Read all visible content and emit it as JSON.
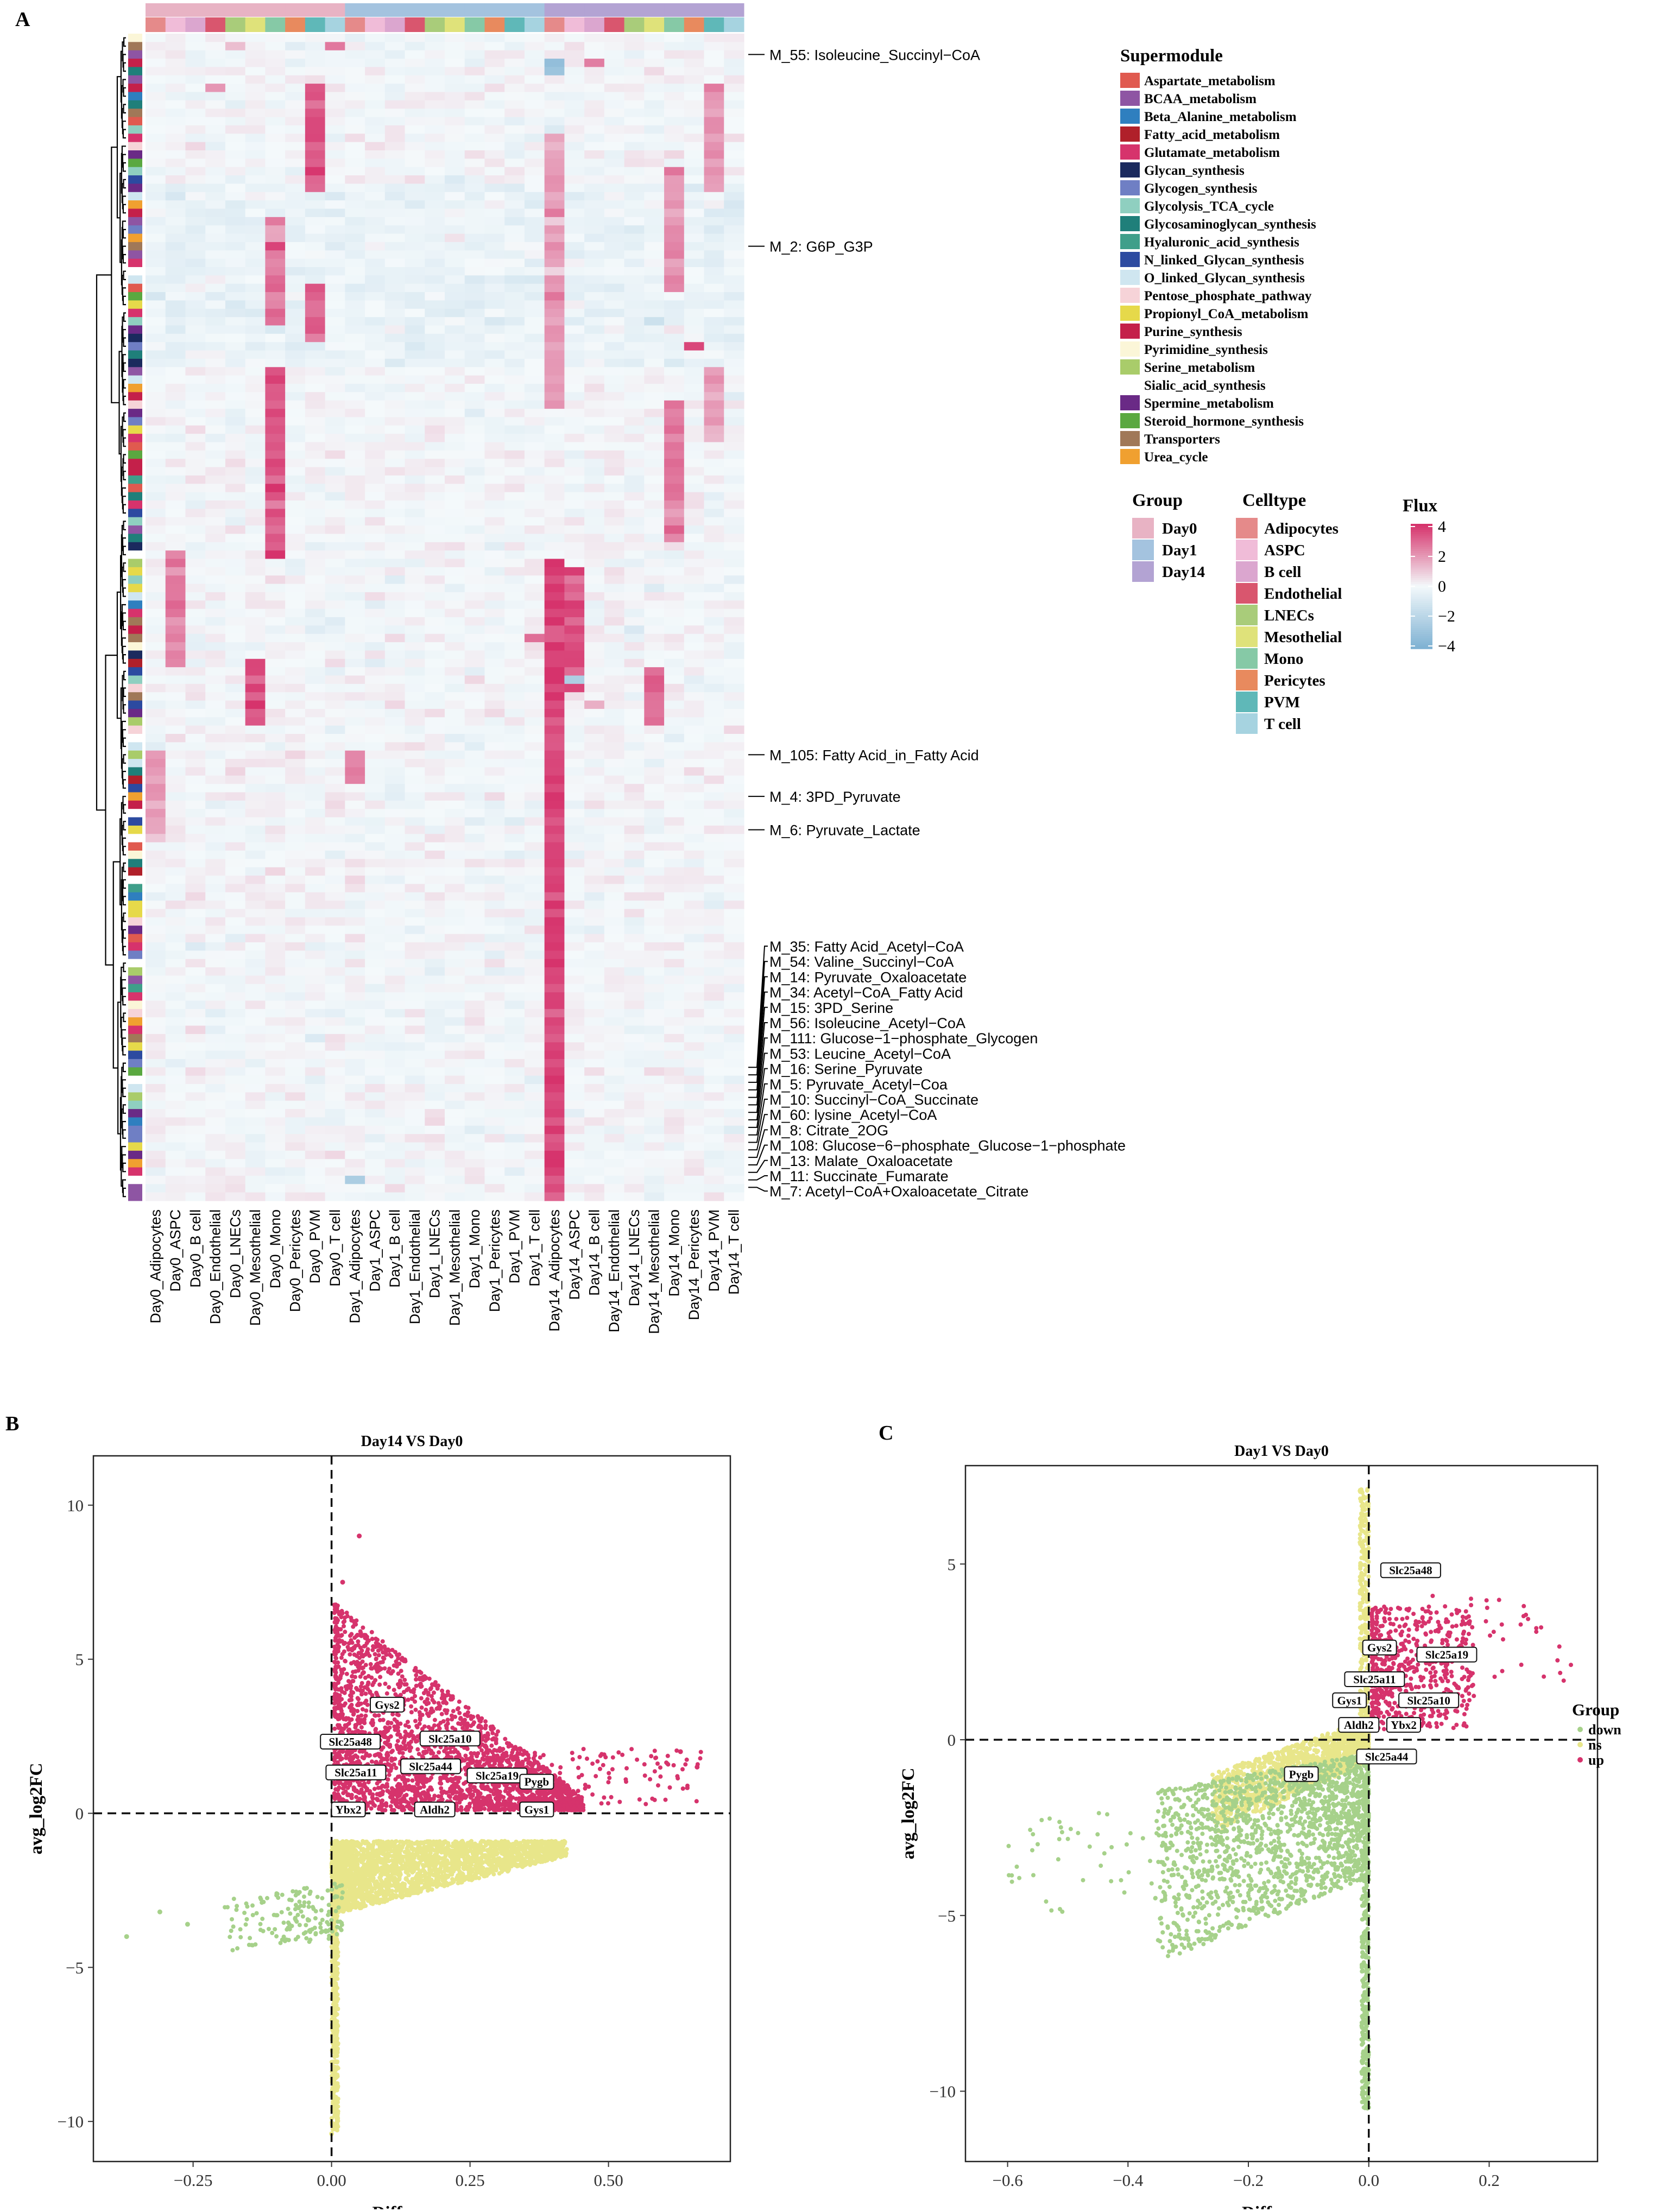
{
  "panel_letters": {
    "a": "A",
    "b": "B",
    "c": "C"
  },
  "colors": {
    "up": "#d6336c",
    "ns": "#e8e68a",
    "down": "#a6d18a",
    "heat_pos": "#d6336c",
    "heat_neg": "#7fb2d3",
    "heat_mid": "#f4f9fb"
  },
  "heatmap": {
    "columns": [
      "Day0_Adipocytes",
      "Day0_ASPC",
      "Day0_B cell",
      "Day0_Endothelial",
      "Day0_LNECs",
      "Day0_Mesothelial",
      "Day0_Mono",
      "Day0_Pericytes",
      "Day0_PVM",
      "Day0_T cell",
      "Day1_Adipocytes",
      "Day1_ASPC",
      "Day1_B cell",
      "Day1_Endothelial",
      "Day1_LNECs",
      "Day1_Mesothelial",
      "Day1_Mono",
      "Day1_Pericytes",
      "Day1_PVM",
      "Day1_T cell",
      "Day14_Adipocytes",
      "Day14_ASPC",
      "Day14_B cell",
      "Day14_Endothelial",
      "Day14_LNECs",
      "Day14_Mesothelial",
      "Day14_Mono",
      "Day14_Pericytes",
      "Day14_PVM",
      "Day14_T cell"
    ],
    "n_rows": 140,
    "module_labels_top": [
      {
        "label": "M_55: Isoleucine_Succinyl−CoA",
        "row": 2
      },
      {
        "label": "M_2: G6P_G3P",
        "row": 25
      },
      {
        "label": "M_105: Fatty Acid_in_Fatty Acid",
        "row": 86
      },
      {
        "label": "M_4: 3PD_Pyruvate",
        "row": 91
      },
      {
        "label": "M_6: Pyruvate_Lactate",
        "row": 95
      }
    ],
    "module_labels_bottom": [
      "M_35: Fatty Acid_Acetyl−CoA",
      "M_54: Valine_Succinyl−CoA",
      "M_14: Pyruvate_Oxaloacetate",
      "M_34: Acetyl−CoA_Fatty Acid",
      "M_15: 3PD_Serine",
      "M_56: Isoleucine_Acetyl−CoA",
      "M_111: Glucose−1−phosphate_Glycogen",
      "M_53: Leucine_Acetyl−CoA",
      "M_16: Serine_Pyruvate",
      "M_5: Pyruvate_Acetyl−Coa",
      "M_10: Succinyl−CoA_Succinate",
      "M_60: lysine_Acetyl−CoA",
      "M_8: Citrate_2OG",
      "M_108: Glucose−6−phosphate_Glucose−1−phosphate",
      "M_13: Malate_Oxaloacetate",
      "M_11: Succinate_Fumarate",
      "M_7: Acetyl−CoA+Oxaloacetate_Citrate"
    ]
  },
  "legend": {
    "supermodule_title": "Supermodule",
    "supermodule": [
      {
        "name": "Aspartate_metabolism",
        "color": "#e05a4f"
      },
      {
        "name": "BCAA_metabolism",
        "color": "#8e55a3"
      },
      {
        "name": "Beta_Alanine_metabolism",
        "color": "#2f7fbf"
      },
      {
        "name": "Fatty_acid_metabolism",
        "color": "#b0202a"
      },
      {
        "name": "Glutamate_metabolism",
        "color": "#d6336c"
      },
      {
        "name": "Glycan_synthesis",
        "color": "#1b2a5e"
      },
      {
        "name": "Glycogen_synthesis",
        "color": "#6f7fc4"
      },
      {
        "name": "Glycolysis_TCA_cycle",
        "color": "#8fcfc0"
      },
      {
        "name": "Glycosaminoglycan_synthesis",
        "color": "#1f7f7a"
      },
      {
        "name": "Hyaluronic_acid_synthesis",
        "color": "#3f9f8a"
      },
      {
        "name": "N_linked_Glycan_synthesis",
        "color": "#2c4aa0"
      },
      {
        "name": "O_linked_Glycan_synthesis",
        "color": "#cfe6f0"
      },
      {
        "name": "Pentose_phosphate_pathway",
        "color": "#f6d3d8"
      },
      {
        "name": "Propionyl_CoA_metabolism",
        "color": "#e6d94a"
      },
      {
        "name": "Purine_synthesis",
        "color": "#c4204a"
      },
      {
        "name": "Pyrimidine_synthesis",
        "color": "#fbf6d8"
      },
      {
        "name": "Serine_metabolism",
        "color": "#a9cc6a"
      },
      {
        "name": "Sialic_acid_synthesis",
        "color": "#ffffff"
      },
      {
        "name": "Spermine_metabolism",
        "color": "#6a2a86"
      },
      {
        "name": "Steroid_hormone_synthesis",
        "color": "#5aa840"
      },
      {
        "name": "Transporters",
        "color": "#a07858"
      },
      {
        "name": "Urea_cycle",
        "color": "#f0a030"
      }
    ],
    "group_title": "Group",
    "group": [
      {
        "name": "Day0",
        "color": "#e8b3c4"
      },
      {
        "name": "Day1",
        "color": "#a4c3df"
      },
      {
        "name": "Day14",
        "color": "#b3a3d3"
      }
    ],
    "celltype_title": "Celltype",
    "celltype": [
      {
        "name": "Adipocytes",
        "color": "#e58a8a"
      },
      {
        "name": "ASPC",
        "color": "#f0bcd8"
      },
      {
        "name": "B cell",
        "color": "#dba6cf"
      },
      {
        "name": "Endothelial",
        "color": "#d9566e"
      },
      {
        "name": "LNECs",
        "color": "#a9cc7a"
      },
      {
        "name": "Mesothelial",
        "color": "#dfe27a"
      },
      {
        "name": "Mono",
        "color": "#86c9a6"
      },
      {
        "name": "Pericytes",
        "color": "#e88a5e"
      },
      {
        "name": "PVM",
        "color": "#5fb8b8"
      },
      {
        "name": "T cell",
        "color": "#a6d3e0"
      }
    ],
    "flux_title": "Flux",
    "flux_ticks": [
      "4",
      "2",
      "0",
      "−2",
      "−4"
    ]
  },
  "chart_data": [
    {
      "type": "scatter",
      "title": "Day14 VS Day0",
      "xlabel": "Difference",
      "ylabel": "avg_log2FC",
      "xlim": [
        -0.43,
        0.72
      ],
      "ylim": [
        -11.3,
        11.6
      ],
      "xticks": [
        -0.25,
        0.0,
        0.25,
        0.5
      ],
      "xtick_labels": [
        "−0.25",
        "0.00",
        "0.25",
        "0.50"
      ],
      "yticks": [
        -10,
        -5,
        0,
        5,
        10
      ],
      "ytick_labels": [
        "−10",
        "−5",
        "0",
        "5",
        "10"
      ],
      "groups": [
        {
          "name": "up",
          "region": {
            "x": [
              0.01,
              0.68
            ],
            "y": [
              0.0,
              7.5
            ]
          }
        },
        {
          "name": "ns",
          "region": {
            "x": [
              0.0,
              0.42
            ],
            "y": [
              -0.9,
              -2.8
            ]
          }
        },
        {
          "name": "down",
          "region": {
            "x": [
              -0.38,
              0.02
            ],
            "y": [
              -2.2,
              -4.8
            ]
          }
        }
      ],
      "gene_labels": [
        {
          "gene": "Gys2",
          "x": 0.07,
          "y": 3.5
        },
        {
          "gene": "Slc25a48",
          "x": -0.02,
          "y": 2.3
        },
        {
          "gene": "Slc25a10",
          "x": 0.16,
          "y": 2.4
        },
        {
          "gene": "Slc25a44",
          "x": 0.125,
          "y": 1.5
        },
        {
          "gene": "Slc25a11",
          "x": -0.01,
          "y": 1.3
        },
        {
          "gene": "Slc25a19",
          "x": 0.245,
          "y": 1.2
        },
        {
          "gene": "Pygb",
          "x": 0.34,
          "y": 1.0
        },
        {
          "gene": "Ybx2",
          "x": 0.0,
          "y": 0.1
        },
        {
          "gene": "Aldh2",
          "x": 0.15,
          "y": 0.1
        },
        {
          "gene": "Gys1",
          "x": 0.34,
          "y": 0.1
        }
      ],
      "extreme_points": [
        {
          "x": 0.05,
          "y": 9.0
        },
        {
          "x": 0.02,
          "y": 7.5
        },
        {
          "x": 0.63,
          "y": 2.0
        },
        {
          "x": 0.66,
          "y": 1.5
        },
        {
          "x": -0.37,
          "y": -4.0
        },
        {
          "x": -0.31,
          "y": -3.2
        },
        {
          "x": -0.26,
          "y": -3.6
        },
        {
          "x": 0.0,
          "y": -10.4
        }
      ]
    },
    {
      "type": "scatter",
      "title": "Day1 VS Day0",
      "xlabel": "Difference",
      "ylabel": "avg_log2FC",
      "xlim": [
        -0.67,
        0.38
      ],
      "ylim": [
        -12.0,
        7.8
      ],
      "xticks": [
        -0.6,
        -0.4,
        -0.2,
        0.0,
        0.2
      ],
      "xtick_labels": [
        "−0.6",
        "−0.4",
        "−0.2",
        "0.0",
        "0.2"
      ],
      "yticks": [
        -10,
        -5,
        0,
        5
      ],
      "ytick_labels": [
        "−10",
        "−5",
        "0",
        "5"
      ],
      "groups": [
        {
          "name": "up",
          "region": {
            "x": [
              0.0,
              0.35
            ],
            "y": [
              0.3,
              4.0
            ]
          }
        },
        {
          "name": "ns",
          "region": {
            "x": [
              -0.25,
              0.0
            ],
            "y": [
              0.5,
              -1.2
            ]
          }
        },
        {
          "name": "down",
          "region": {
            "x": [
              -0.62,
              0.0
            ],
            "y": [
              -0.5,
              -10.5
            ]
          }
        }
      ],
      "gene_labels": [
        {
          "gene": "Slc25a48",
          "x": 0.02,
          "y": 4.8
        },
        {
          "gene": "Gys2",
          "x": -0.01,
          "y": 2.6
        },
        {
          "gene": "Slc25a19",
          "x": 0.08,
          "y": 2.4
        },
        {
          "gene": "Slc25a11",
          "x": -0.04,
          "y": 1.7
        },
        {
          "gene": "Slc25a10",
          "x": 0.05,
          "y": 1.1
        },
        {
          "gene": "Gys1",
          "x": -0.06,
          "y": 1.1
        },
        {
          "gene": "Aldh2",
          "x": -0.05,
          "y": 0.4
        },
        {
          "gene": "Ybx2",
          "x": 0.03,
          "y": 0.4
        },
        {
          "gene": "Slc25a44",
          "x": -0.02,
          "y": -0.5
        },
        {
          "gene": "Pygb",
          "x": -0.14,
          "y": -1.0
        }
      ],
      "legend": {
        "title": "Group",
        "items": [
          "down",
          "ns",
          "up"
        ]
      }
    }
  ]
}
